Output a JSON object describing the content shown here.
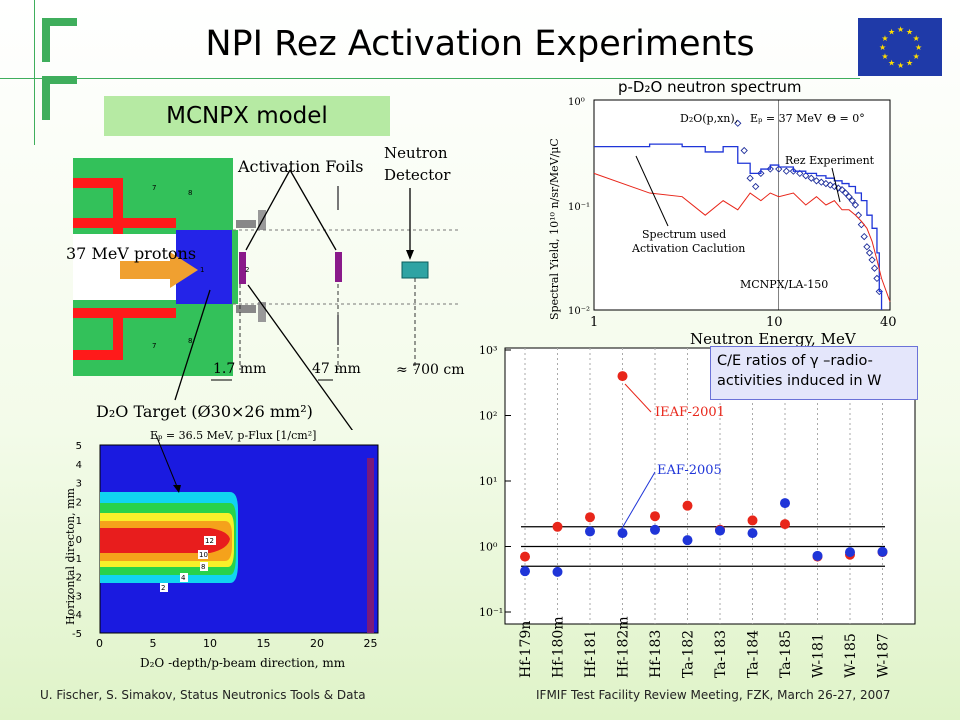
{
  "slide": {
    "title": "NPI Rez Activation Experiments",
    "footer_left": "U. Fischer, S. Simakov, Status Neutronics Tools & Data",
    "footer_right": "IFMIF Test Facility Review Meeting, FZK, March 26-27, 2007"
  },
  "model": {
    "box_label": "MCNPX model",
    "activation_foils": "Activation Foils",
    "neutron_detector_1": "Neutron",
    "neutron_detector_2": "Detector",
    "protons": "37 MeV protons",
    "dist1": "1.7 mm",
    "dist2": "47 mm",
    "dist3": "≈ 700 cm",
    "target_label": "D₂O Target (Ø30×26 mm²)",
    "cell_labels": [
      "7",
      "8",
      "7",
      "8",
      "7",
      "1",
      "2"
    ]
  },
  "spectrum": {
    "heading": "p-D₂O neutron spectrum",
    "reaction": "D₂O(p,xn),",
    "energy": "Eₚ = 37 MeV",
    "angle": "Θ = 0°",
    "rez_label": "Rez Experiment",
    "used_label_1": "Spectrum used",
    "used_label_2": "Activation Caclution",
    "mcnpx_label": "MCNPX/LA-150",
    "ylabel": "Spectral Yield,  10¹⁰ n/sr/MeV/μC",
    "xlabel": "Neutron Energy, MeV",
    "x_ticks": [
      "1",
      "10",
      "40"
    ],
    "y_ticks": [
      "10⁰",
      "10⁻¹",
      "10⁻²"
    ]
  },
  "flux": {
    "title": "Eₚ = 36.5 MeV,  p-Flux [1/cm²]",
    "xlabel": "D₂O -depth/p-beam direction, mm",
    "ylabel": "Horizontal directon, mm",
    "x_ticks": [
      "0",
      "5",
      "10",
      "15",
      "20",
      "25"
    ],
    "y_ticks": [
      "5",
      "4",
      "3",
      "2",
      "1",
      "0",
      "-1",
      "-2",
      "-3",
      "-4",
      "-5"
    ],
    "contour_labels": [
      "12",
      "10",
      "8",
      "4",
      "2"
    ]
  },
  "ce": {
    "callout": "C/E ratios of γ –radio-activities induced in W",
    "ieaf": "IEAF-2001",
    "eaf": "EAF-2005",
    "y_ticks": [
      "10³",
      "10²",
      "10¹",
      "10⁰",
      "10⁻¹"
    ]
  },
  "chart_data": [
    {
      "type": "scatter",
      "title": "",
      "xlabel": "",
      "ylabel": "",
      "log_y": true,
      "ylim": [
        0.1,
        1000
      ],
      "reference_lines": [
        0.5,
        1.0,
        2.0
      ],
      "categories": [
        "Hf-179n",
        "Hf-180m",
        "Hf-181",
        "Hf-182m",
        "Hf-183",
        "Ta-182",
        "Ta-183",
        "Ta-184",
        "Ta-185",
        "W-181",
        "W-185",
        "W-187"
      ],
      "series": [
        {
          "name": "IEAF-2001",
          "color": "#e8261a",
          "values": [
            0.7,
            2.0,
            2.8,
            400,
            2.9,
            4.2,
            1.8,
            2.5,
            2.2,
            0.7,
            0.75,
            0.82
          ]
        },
        {
          "name": "EAF-2005",
          "color": "#1f35d8",
          "values": [
            0.42,
            0.41,
            1.7,
            1.6,
            1.8,
            1.25,
            1.75,
            1.6,
            4.6,
            0.72,
            0.82,
            0.83
          ]
        }
      ]
    },
    {
      "type": "line",
      "title": "",
      "xlabel": "Neutron Energy, MeV",
      "ylabel": "Spectral Yield,  10¹⁰ n/sr/MeV/μC",
      "log_x": true,
      "log_y": true,
      "xlim": [
        1,
        40
      ],
      "ylim": [
        0.01,
        1.0
      ],
      "series": [
        {
          "name": "Rez Experiment",
          "style": "markers",
          "x": [
            6.0,
            6.5,
            7.0,
            7.5,
            8.0,
            9.0,
            10,
            11,
            12,
            13,
            14,
            15,
            16,
            17,
            18,
            19,
            20,
            21,
            22,
            23,
            24,
            25,
            26,
            27,
            28,
            29,
            30,
            31,
            32,
            33,
            34,
            35
          ],
          "y": [
            0.6,
            0.33,
            0.18,
            0.15,
            0.2,
            0.22,
            0.22,
            0.21,
            0.21,
            0.2,
            0.19,
            0.18,
            0.17,
            0.165,
            0.16,
            0.155,
            0.15,
            0.145,
            0.14,
            0.13,
            0.12,
            0.11,
            0.1,
            0.08,
            0.065,
            0.05,
            0.04,
            0.035,
            0.03,
            0.025,
            0.02,
            0.015
          ]
        },
        {
          "name": "Spectrum used",
          "style": "step",
          "x": [
            1,
            2,
            3,
            4,
            5,
            6,
            7,
            8,
            9,
            10,
            12,
            14,
            16,
            18,
            20,
            22,
            24,
            26,
            28,
            30,
            32,
            34,
            35,
            36
          ],
          "y": [
            0.36,
            0.38,
            0.36,
            0.32,
            0.36,
            0.25,
            0.2,
            0.22,
            0.24,
            0.23,
            0.21,
            0.2,
            0.19,
            0.18,
            0.17,
            0.16,
            0.15,
            0.13,
            0.11,
            0.08,
            0.06,
            0.035,
            0.015,
            0.01
          ]
        },
        {
          "name": "MCNPX/LA-150",
          "style": "line",
          "x": [
            1,
            2,
            3,
            4,
            5,
            6,
            7,
            8,
            9,
            10,
            12,
            14,
            16,
            18,
            20,
            22,
            24,
            26,
            28,
            30,
            32,
            34,
            36,
            40
          ],
          "y": [
            0.2,
            0.13,
            0.12,
            0.08,
            0.11,
            0.09,
            0.13,
            0.11,
            0.13,
            0.12,
            0.13,
            0.1,
            0.12,
            0.1,
            0.11,
            0.09,
            0.09,
            0.08,
            0.07,
            0.06,
            0.045,
            0.03,
            0.02,
            0.012
          ]
        }
      ]
    }
  ]
}
